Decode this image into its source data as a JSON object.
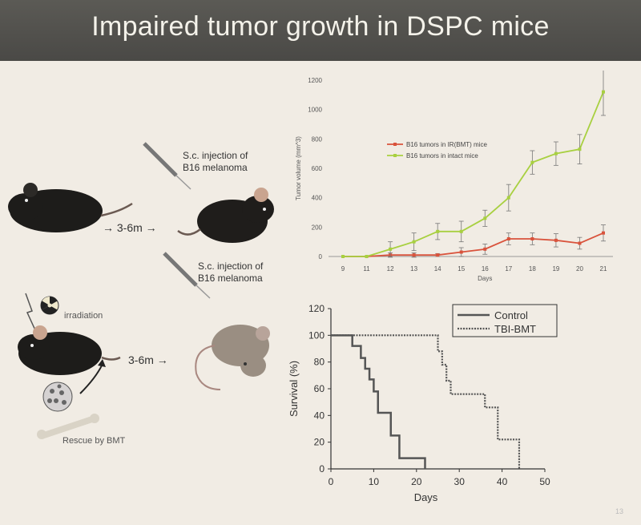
{
  "slide": {
    "title": "Impaired tumor growth in DSPC mice",
    "page_number": "13"
  },
  "diagram": {
    "injection_top": [
      "S.c. injection of",
      "B16 melanoma"
    ],
    "injection_bottom": [
      "S.c. injection of",
      "B16 melanoma"
    ],
    "interval_top": "→ 3-6m →",
    "interval_bottom": "3-6m →",
    "irradiation": "irradiation",
    "rescue": "Rescue by BMT"
  },
  "chart_data": [
    {
      "type": "line",
      "title": "",
      "xlabel": "Days",
      "ylabel": "Tumor volume (mm^3)",
      "x": [
        9,
        11,
        12,
        13,
        14,
        15,
        16,
        17,
        18,
        19,
        20,
        21
      ],
      "ylim": [
        0,
        1200
      ],
      "yticks": [
        0,
        200,
        400,
        600,
        800,
        1000,
        1200
      ],
      "legend_position": "center-right",
      "series": [
        {
          "name": "B16 tumors in IR(BMT) mice",
          "color": "#d9533c",
          "values": [
            0,
            0,
            10,
            10,
            10,
            30,
            50,
            120,
            120,
            110,
            90,
            160
          ],
          "errors": [
            0,
            0,
            15,
            15,
            10,
            30,
            35,
            40,
            40,
            45,
            40,
            55
          ]
        },
        {
          "name": "B16 tumors in intact mice",
          "color": "#a8d040",
          "values": [
            0,
            0,
            50,
            100,
            170,
            170,
            260,
            400,
            640,
            700,
            730,
            1120
          ],
          "errors": [
            0,
            0,
            50,
            60,
            55,
            70,
            55,
            90,
            80,
            80,
            100,
            160
          ]
        }
      ]
    },
    {
      "type": "line",
      "title": "",
      "xlabel": "Days",
      "ylabel": "Survival (%)",
      "xlim": [
        0,
        50
      ],
      "xticks": [
        0,
        10,
        20,
        30,
        40,
        50
      ],
      "ylim": [
        0,
        120
      ],
      "yticks": [
        0,
        20,
        40,
        60,
        80,
        100,
        120
      ],
      "legend_position": "top-right",
      "series": [
        {
          "name": "Control",
          "style": "solid",
          "steps": [
            [
              0,
              100
            ],
            [
              5,
              100
            ],
            [
              5,
              92
            ],
            [
              7,
              92
            ],
            [
              7,
              83
            ],
            [
              8,
              83
            ],
            [
              8,
              75
            ],
            [
              9,
              75
            ],
            [
              9,
              67
            ],
            [
              10,
              67
            ],
            [
              10,
              58
            ],
            [
              11,
              58
            ],
            [
              11,
              42
            ],
            [
              14,
              42
            ],
            [
              14,
              25
            ],
            [
              16,
              25
            ],
            [
              16,
              8
            ],
            [
              22,
              8
            ],
            [
              22,
              0
            ]
          ]
        },
        {
          "name": "TBI-BMT",
          "style": "dotted",
          "steps": [
            [
              0,
              100
            ],
            [
              25,
              100
            ],
            [
              25,
              88
            ],
            [
              26,
              88
            ],
            [
              26,
              78
            ],
            [
              27,
              78
            ],
            [
              27,
              66
            ],
            [
              28,
              66
            ],
            [
              28,
              56
            ],
            [
              36,
              56
            ],
            [
              36,
              46
            ],
            [
              39,
              46
            ],
            [
              39,
              22
            ],
            [
              44,
              22
            ],
            [
              44,
              0
            ]
          ]
        }
      ]
    }
  ]
}
